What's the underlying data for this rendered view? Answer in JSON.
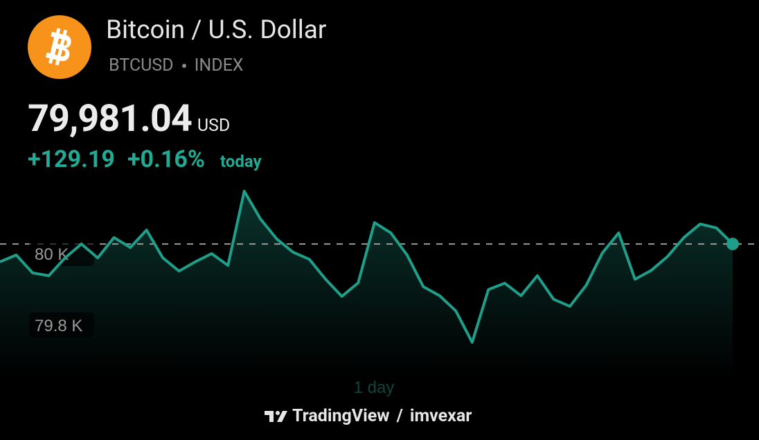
{
  "header": {
    "title": "Bitcoin / U.S. Dollar",
    "symbol": "BTCUSD",
    "exchange": "INDEX"
  },
  "price": {
    "value": "79,981.04",
    "currency": "USD",
    "change": "+129.19",
    "change_percent": "+0.16%",
    "period": "today"
  },
  "chart_data": {
    "type": "line",
    "color": "#1f9e89",
    "values": [
      79977,
      79996,
      79946,
      79938,
      79988,
      80027,
      79988,
      80045,
      80017,
      80066,
      79988,
      79951,
      79977,
      80000,
      79967,
      80175,
      80097,
      80041,
      80004,
      79984,
      79928,
      79880,
      79918,
      80087,
      80058,
      79996,
      79907,
      79882,
      79839,
      79751,
      79899,
      79917,
      79882,
      79938,
      79872,
      79852,
      79911,
      80002,
      80058,
      79928,
      79953,
      79992,
      80045,
      80083,
      80072,
      80027
    ],
    "ylim": [
      79652,
      80206
    ],
    "yticks": [
      {
        "value": 80000,
        "label": "80 K"
      },
      {
        "value": 79800,
        "label": "79.8 K"
      }
    ],
    "range_label": "1 day"
  },
  "footer": {
    "brand": "TradingView",
    "separator": "/",
    "user": "imvexar"
  }
}
